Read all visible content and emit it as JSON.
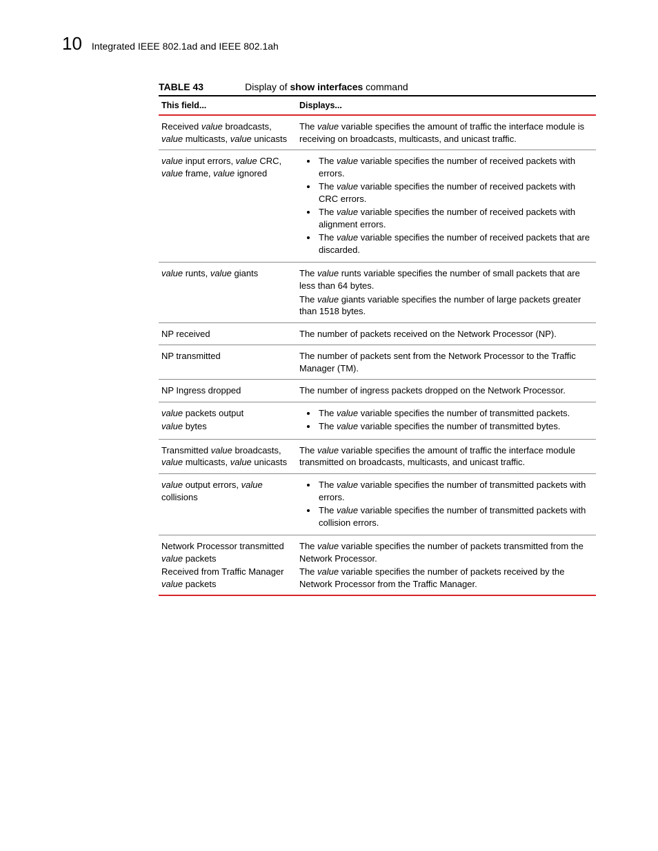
{
  "header": {
    "chapter_number": "10",
    "chapter_title": "Integrated IEEE 802.1ad and IEEE 802.1ah"
  },
  "table": {
    "label": "TABLE 43",
    "caption_prefix": "Display of ",
    "caption_cmd": "show interfaces",
    "caption_suffix": " command",
    "col1_header": "This field...",
    "col2_header": "Displays...",
    "rows": {
      "r0": {
        "f_a": "Received ",
        "f_b": "value",
        "f_c": " broadcasts, ",
        "f_d": "value",
        "f_e": " multicasts, ",
        "f_f": "value",
        "f_g": " unicasts",
        "d_a": "The ",
        "d_b": "value",
        "d_c": " variable specifies the amount of traffic the interface module is receiving on broadcasts, multicasts, and unicast traffic."
      },
      "r1": {
        "f_a": "value",
        "f_b": " input errors, ",
        "f_c": "value",
        "f_d": " CRC, ",
        "f_e": "value",
        "f_f": " frame, ",
        "f_g": "value",
        "f_h": " ignored",
        "b0_a": "The ",
        "b0_b": "value",
        "b0_c": " variable specifies the number of received packets with errors.",
        "b1_a": "The ",
        "b1_b": "value",
        "b1_c": " variable specifies the number of received packets with CRC errors.",
        "b2_a": "The ",
        "b2_b": "value",
        "b2_c": " variable specifies the number of received packets with alignment errors.",
        "b3_a": "The ",
        "b3_b": "value",
        "b3_c": " variable specifies the number of received packets that are discarded."
      },
      "r2": {
        "f_a": "value",
        "f_b": " runts, ",
        "f_c": "value",
        "f_d": " giants",
        "p0_a": "The ",
        "p0_b": "value",
        "p0_c": " runts variable specifies the number of small packets that are less than 64 bytes.",
        "p1_a": "The ",
        "p1_b": "value",
        "p1_c": " giants variable specifies the number of large packets greater than 1518 bytes."
      },
      "r3": {
        "f": "NP received",
        "d": "The number of packets received on the Network Processor (NP)."
      },
      "r4": {
        "f": "NP transmitted",
        "d": "The number of packets sent from the Network Processor to the Traffic Manager (TM)."
      },
      "r5": {
        "f": "NP Ingress dropped",
        "d": "The number of ingress packets dropped on the Network Processor."
      },
      "r6": {
        "f_a": "value",
        "f_b": " packets output",
        "f2_a": "value",
        "f2_b": " bytes",
        "b0_a": "The ",
        "b0_b": "value",
        "b0_c": " variable specifies the number of transmitted packets.",
        "b1_a": "The ",
        "b1_b": "value",
        "b1_c": " variable specifies the number of transmitted bytes."
      },
      "r7": {
        "f_a": "Transmitted ",
        "f_b": "value",
        "f_c": " broadcasts, ",
        "f_d": "value",
        "f_e": " multicasts, ",
        "f_f": "value",
        "f_g": " unicasts",
        "d_a": "The ",
        "d_b": "value",
        "d_c": " variable specifies the amount of traffic the interface module transmitted on broadcasts, multicasts, and unicast traffic."
      },
      "r8": {
        "f_a": "value",
        "f_b": " output errors, ",
        "f_c": "value",
        "f_d": " collisions",
        "b0_a": "The ",
        "b0_b": "value",
        "b0_c": " variable specifies the number of transmitted packets with errors.",
        "b1_a": "The ",
        "b1_b": "value",
        "b1_c": " variable specifies the number of transmitted packets with collision errors."
      },
      "r9": {
        "f1_a": "Network Processor transmitted ",
        "f1_b": "value",
        "f1_c": " packets",
        "f2_a": " Received from Traffic Manager ",
        "f2_b": "value",
        "f2_c": " packets",
        "p0_a": "The ",
        "p0_b": "value",
        "p0_c": " variable specifies the number of packets transmitted from the Network Processor.",
        "p1_a": "The ",
        "p1_b": "value",
        "p1_c": " variable specifies the number of packets received by the Network Processor from the Traffic Manager."
      }
    }
  },
  "colors": {
    "rule_red": "#d8232a",
    "rule_gray": "#8a8a8a",
    "text": "#000000",
    "background": "#ffffff"
  }
}
